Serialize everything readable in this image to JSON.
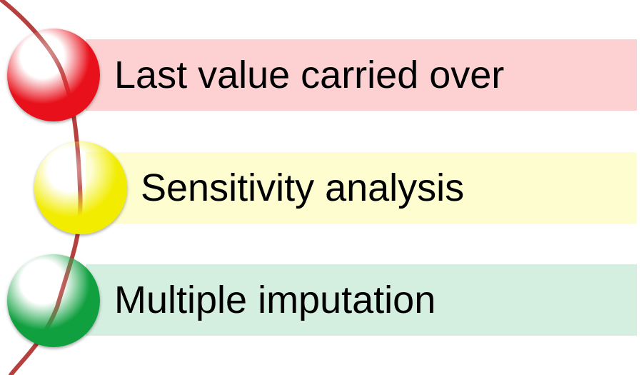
{
  "items": [
    {
      "label": "Last value carried over",
      "color": "#e8101a",
      "band_color": "#fdd1d1"
    },
    {
      "label": "Sensitivity analysis",
      "color": "#f2ec00",
      "band_color": "#fdfdcf"
    },
    {
      "label": "Multiple imputation",
      "color": "#10a040",
      "band_color": "#d4efdf"
    }
  ],
  "connector_color": "#b5403e"
}
